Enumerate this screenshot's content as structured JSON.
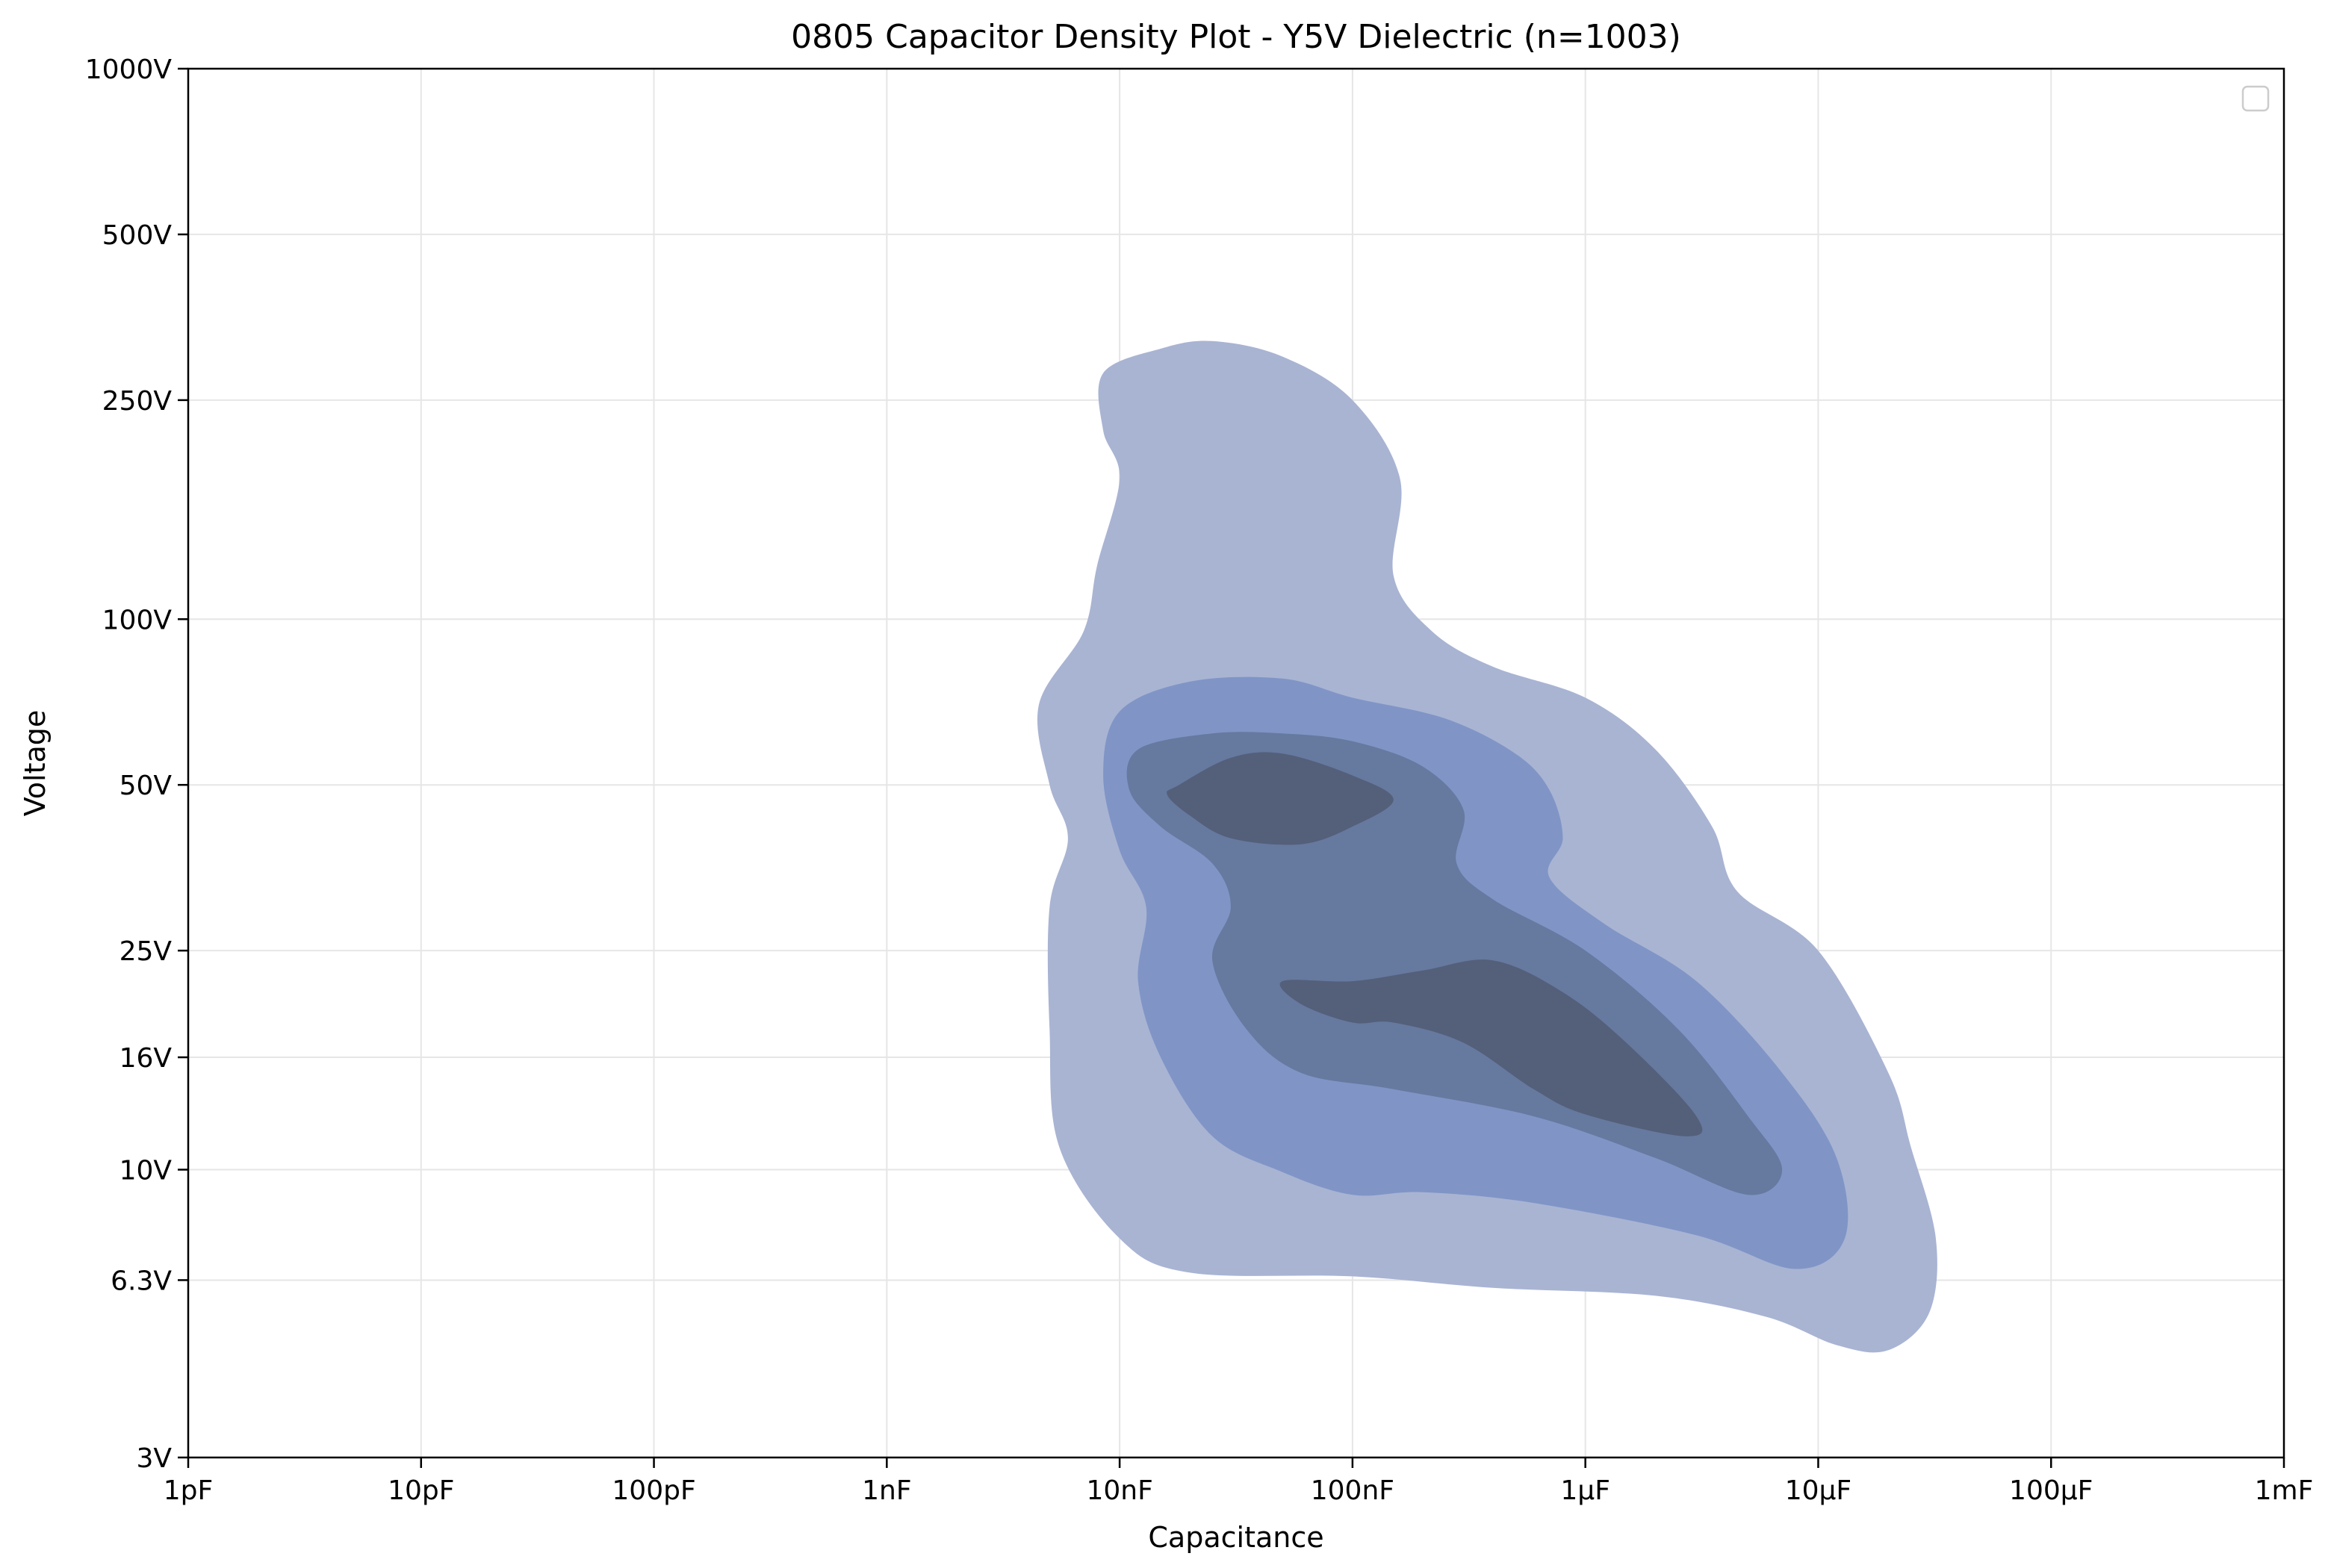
{
  "chart_data": {
    "type": "contour",
    "title": "0805 Capacitor Density Plot - Y5V Dielectric (n=1003)",
    "xlabel": "Capacitance",
    "ylabel": "Voltage",
    "x_scale": "log",
    "y_scale": "log",
    "xlim": [
      1e-12,
      0.001
    ],
    "ylim": [
      3,
      1000
    ],
    "x_ticks": [
      {
        "value": 1e-12,
        "label": "1pF"
      },
      {
        "value": 1e-11,
        "label": "10pF"
      },
      {
        "value": 1e-10,
        "label": "100pF"
      },
      {
        "value": 1e-09,
        "label": "1nF"
      },
      {
        "value": 1e-08,
        "label": "10nF"
      },
      {
        "value": 1e-07,
        "label": "100nF"
      },
      {
        "value": 1e-06,
        "label": "1µF"
      },
      {
        "value": 1e-05,
        "label": "10µF"
      },
      {
        "value": 0.0001,
        "label": "100µF"
      },
      {
        "value": 0.001,
        "label": "1mF"
      }
    ],
    "y_ticks": [
      {
        "value": 3,
        "label": "3V"
      },
      {
        "value": 6.3,
        "label": "6.3V"
      },
      {
        "value": 10,
        "label": "10V"
      },
      {
        "value": 16,
        "label": "16V"
      },
      {
        "value": 25,
        "label": "25V"
      },
      {
        "value": 50,
        "label": "50V"
      },
      {
        "value": 100,
        "label": "100V"
      },
      {
        "value": 250,
        "label": "250V"
      },
      {
        "value": 500,
        "label": "500V"
      },
      {
        "value": 1000,
        "label": "1000V"
      }
    ],
    "grid": true,
    "legend": {
      "position": "top-right",
      "entries": []
    },
    "density_levels": [
      {
        "level": 1,
        "color": "#a9b4d3",
        "regions": [
          [
            [
              1.5e-08,
              310
            ],
            [
              2.5e-08,
              320
            ],
            [
              5e-08,
              300
            ],
            [
              1e-07,
              250
            ],
            [
              1.6e-07,
              180
            ],
            [
              1.5e-07,
              120
            ],
            [
              2.2e-07,
              95
            ],
            [
              4e-07,
              82
            ],
            [
              1e-06,
              72
            ],
            [
              2e-06,
              58
            ],
            [
              3.5e-06,
              42
            ],
            [
              4.5e-06,
              32
            ],
            [
              1e-05,
              25
            ],
            [
              2e-05,
              15
            ],
            [
              2.5e-05,
              11
            ],
            [
              3.2e-05,
              7.5
            ],
            [
              3e-05,
              5.5
            ],
            [
              2e-05,
              4.7
            ],
            [
              1.2e-05,
              4.8
            ],
            [
              6e-06,
              5.4
            ],
            [
              2e-06,
              5.9
            ],
            [
              4e-07,
              6.1
            ],
            [
              1e-07,
              6.4
            ],
            [
              2e-08,
              6.5
            ],
            [
              1e-08,
              7.5
            ],
            [
              5.5e-09,
              11
            ],
            [
              5e-09,
              18
            ],
            [
              5e-09,
              30
            ],
            [
              6e-09,
              40
            ],
            [
              5e-09,
              50
            ],
            [
              4.5e-09,
              70
            ],
            [
              7e-09,
              95
            ],
            [
              8e-09,
              125
            ],
            [
              1e-08,
              180
            ],
            [
              8.5e-09,
              220
            ],
            [
              8.5e-09,
              280
            ]
          ]
        ]
      },
      {
        "level": 2,
        "color": "#8095c6",
        "regions": [
          [
            [
              1e-08,
              68
            ],
            [
              2e-08,
              77
            ],
            [
              5e-08,
              78
            ],
            [
              1e-07,
              72
            ],
            [
              2.5e-07,
              66
            ],
            [
              5e-07,
              57
            ],
            [
              7e-07,
              49
            ],
            [
              8e-07,
              40
            ],
            [
              7e-07,
              34
            ],
            [
              1.2e-06,
              28
            ],
            [
              3e-06,
              22
            ],
            [
              7e-06,
              15
            ],
            [
              1.2e-05,
              10.5
            ],
            [
              1.3e-05,
              7.5
            ],
            [
              8e-06,
              6.6
            ],
            [
              3e-06,
              7.6
            ],
            [
              6e-07,
              8.7
            ],
            [
              2e-07,
              9.1
            ],
            [
              1e-07,
              9
            ],
            [
              5e-08,
              9.9
            ],
            [
              2.5e-08,
              11.5
            ],
            [
              1.5e-08,
              16
            ],
            [
              1.2e-08,
              22
            ],
            [
              1.3e-08,
              30
            ],
            [
              1e-08,
              38
            ],
            [
              8.5e-09,
              52
            ]
          ]
        ]
      },
      {
        "level": 3,
        "color": "#66799f",
        "regions": [
          [
            [
              1.2e-08,
              58
            ],
            [
              2.5e-08,
              62
            ],
            [
              5e-08,
              62
            ],
            [
              1e-07,
              60
            ],
            [
              2e-07,
              54
            ],
            [
              3e-07,
              45
            ],
            [
              2.8e-07,
              36
            ],
            [
              4e-07,
              31
            ],
            [
              1e-06,
              25
            ],
            [
              2.5e-06,
              18
            ],
            [
              5e-06,
              12.5
            ],
            [
              7e-06,
              10
            ],
            [
              5e-06,
              9
            ],
            [
              2e-06,
              10.5
            ],
            [
              6e-07,
              12.5
            ],
            [
              1.5e-07,
              14
            ],
            [
              6e-08,
              15
            ],
            [
              3.5e-08,
              18
            ],
            [
              2.5e-08,
              24
            ],
            [
              3e-08,
              30
            ],
            [
              2.5e-08,
              36
            ],
            [
              1.5e-08,
              42
            ],
            [
              1.1e-08,
              49
            ]
          ]
        ]
      },
      {
        "level": 4,
        "color": "#545f7a",
        "regions": [
          [
            [
              1.8e-08,
              50
            ],
            [
              3e-08,
              56
            ],
            [
              5e-08,
              57
            ],
            [
              1e-07,
              52
            ],
            [
              1.5e-07,
              47
            ],
            [
              1e-07,
              42
            ],
            [
              6e-08,
              39
            ],
            [
              3e-08,
              40
            ],
            [
              2e-08,
              44
            ],
            [
              1.6e-08,
              48
            ]
          ],
          [
            [
              5e-08,
              22
            ],
            [
              1e-07,
              22
            ],
            [
              2e-07,
              23
            ],
            [
              4e-07,
              24
            ],
            [
              8e-07,
              21
            ],
            [
              1.5e-06,
              17
            ],
            [
              3e-06,
              12.5
            ],
            [
              2.7e-06,
              11.5
            ],
            [
              1e-06,
              12.6
            ],
            [
              6e-07,
              14
            ],
            [
              3e-07,
              17
            ],
            [
              1.5e-07,
              18.5
            ],
            [
              1e-07,
              18.5
            ],
            [
              6e-08,
              20
            ]
          ]
        ]
      }
    ]
  }
}
